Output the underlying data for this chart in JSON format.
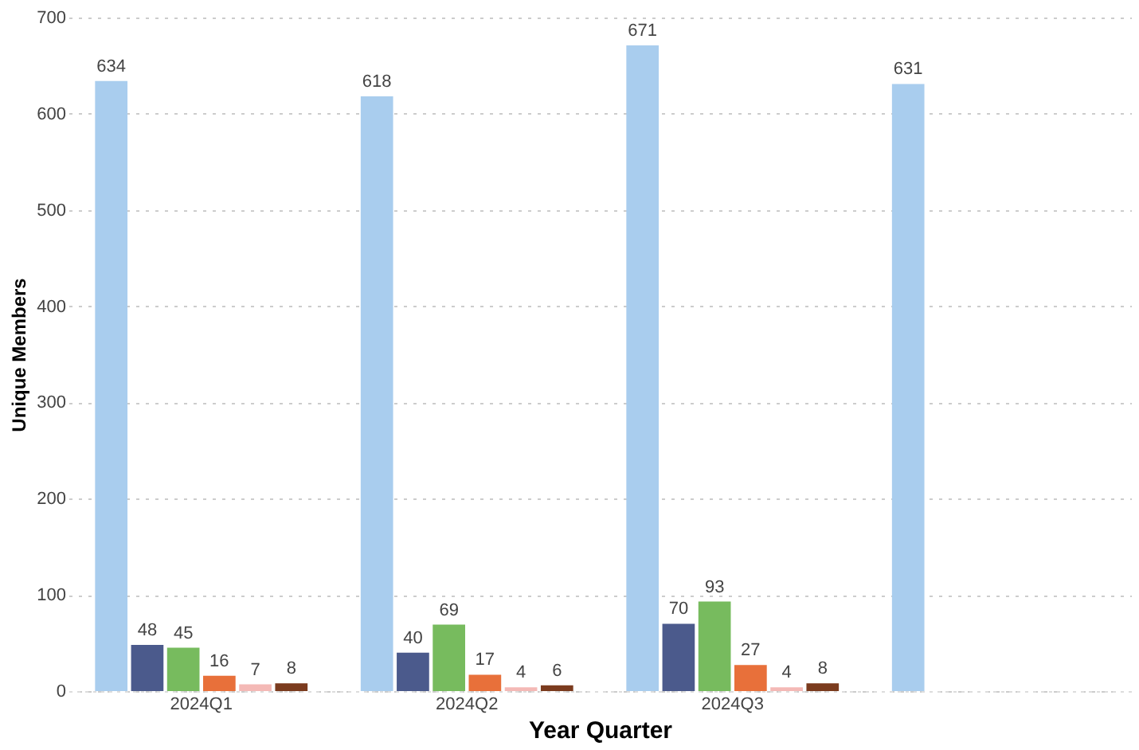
{
  "chart_data": {
    "type": "bar",
    "xlabel": "Year Quarter",
    "ylabel": "Unique Members",
    "categories": [
      "2024Q1",
      "2024Q2",
      "2024Q3",
      null
    ],
    "series": [
      {
        "color": "#a9cdee",
        "values": [
          634,
          618,
          671,
          631
        ]
      },
      {
        "color": "#4b5a8c",
        "values": [
          48,
          40,
          70,
          null
        ]
      },
      {
        "color": "#77bb5e",
        "values": [
          45,
          69,
          93,
          null
        ]
      },
      {
        "color": "#e8703a",
        "values": [
          16,
          17,
          27,
          null
        ]
      },
      {
        "color": "#f4b9b6",
        "values": [
          7,
          4,
          4,
          null
        ]
      },
      {
        "color": "#7b3b1e",
        "values": [
          8,
          6,
          8,
          null
        ]
      }
    ],
    "ylim": [
      0,
      700
    ],
    "yticks": [
      0,
      100,
      200,
      300,
      400,
      500,
      600,
      700
    ],
    "grid": "y",
    "data_labels": true
  }
}
